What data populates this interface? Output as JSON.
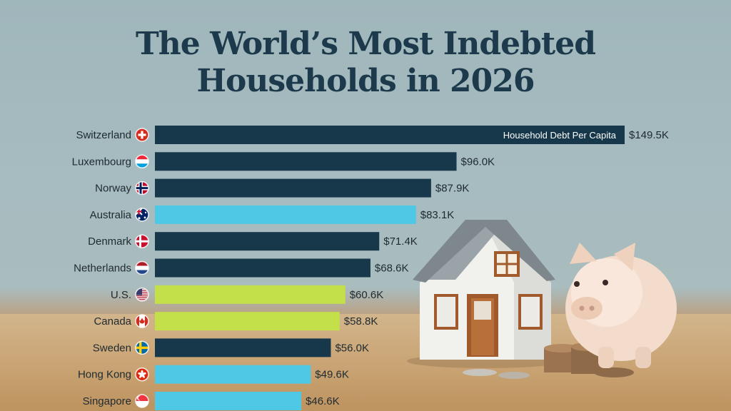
{
  "chart_data": {
    "type": "bar",
    "orientation": "horizontal",
    "title_lines": [
      "The World’s Most Indebted",
      "Households in 2026"
    ],
    "annotation": "Household Debt Per Capita",
    "categories": [
      "Switzerland",
      "Luxembourg",
      "Norway",
      "Australia",
      "Denmark",
      "Netherlands",
      "U.S.",
      "Canada",
      "Sweden",
      "Hong Kong",
      "Singapore"
    ],
    "values": [
      149.5,
      96.0,
      87.9,
      83.1,
      71.4,
      68.6,
      60.6,
      58.8,
      56.0,
      49.6,
      46.6
    ],
    "value_labels": [
      "$149.5K",
      "$96.0K",
      "$87.9K",
      "$83.1K",
      "$71.4K",
      "$68.6K",
      "$60.6K",
      "$58.8K",
      "$56.0K",
      "$49.6K",
      "$46.6K"
    ],
    "bar_colors": [
      "#16384a",
      "#16384a",
      "#16384a",
      "#4fc8e6",
      "#16384a",
      "#16384a",
      "#c3df49",
      "#c3df49",
      "#16384a",
      "#4fc8e6",
      "#4fc8e6"
    ],
    "flags": [
      "ch",
      "lu",
      "no",
      "au",
      "dk",
      "nl",
      "us",
      "ca",
      "se",
      "hk",
      "sg"
    ],
    "xlim": [
      0,
      149.5
    ],
    "grid": false
  },
  "colors": {
    "title": "#1d3a4c",
    "dark": "#16384a",
    "label_text": "#1e2a30"
  }
}
